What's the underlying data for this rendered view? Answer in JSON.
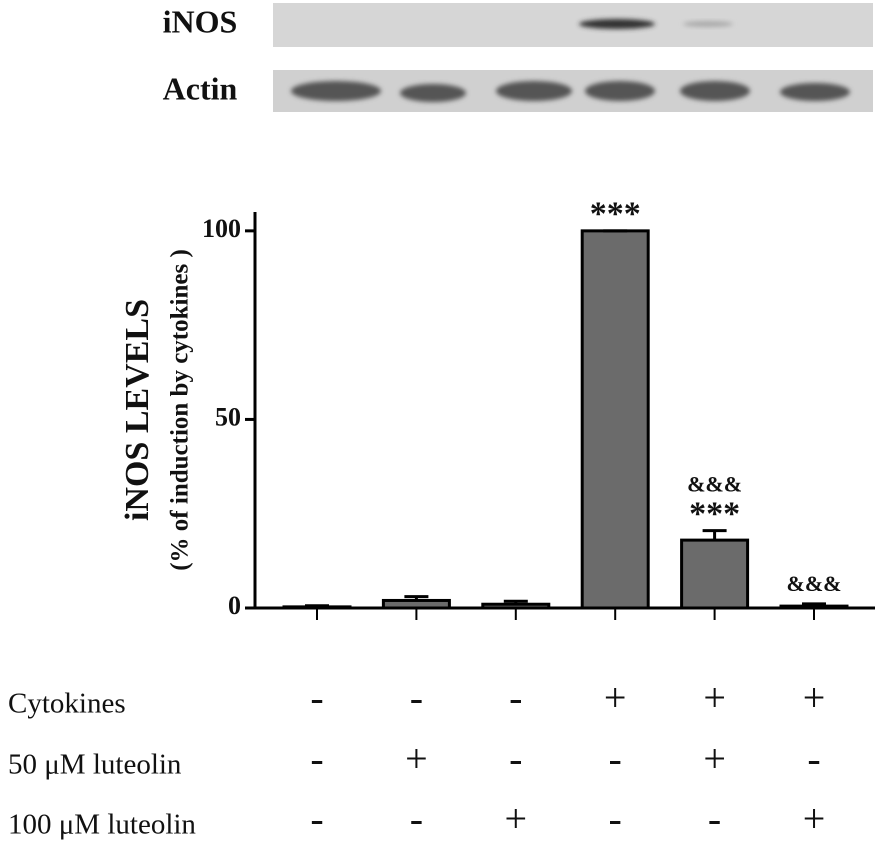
{
  "chart_data": {
    "type": "bar",
    "blot_labels": [
      "iNOS",
      "Actin"
    ],
    "ylabel": "iNOS LEVELS",
    "ylabel2": "(% of induction by cytokines )",
    "values": [
      0.3,
      2,
      1,
      100,
      18,
      0.5
    ],
    "errors": [
      0.3,
      1,
      0.8,
      0,
      2.5,
      0.6
    ],
    "annotations": [
      null,
      null,
      null,
      [
        "***"
      ],
      [
        "&&&",
        "***"
      ],
      [
        "&&&"
      ]
    ],
    "color": "#6b6b6b",
    "ylim": [
      0,
      105
    ],
    "yticks": [
      0,
      50,
      100
    ],
    "conditions": [
      {
        "label": "Cytokines",
        "signs": [
          "-",
          "-",
          "-",
          "+",
          "+",
          "+"
        ]
      },
      {
        "label": "50 μM luteolin",
        "signs": [
          "-",
          "+",
          "-",
          "-",
          "+",
          "-"
        ]
      },
      {
        "label": "100 μM luteolin",
        "signs": [
          "-",
          "-",
          "+",
          "-",
          "-",
          "+"
        ]
      }
    ]
  }
}
